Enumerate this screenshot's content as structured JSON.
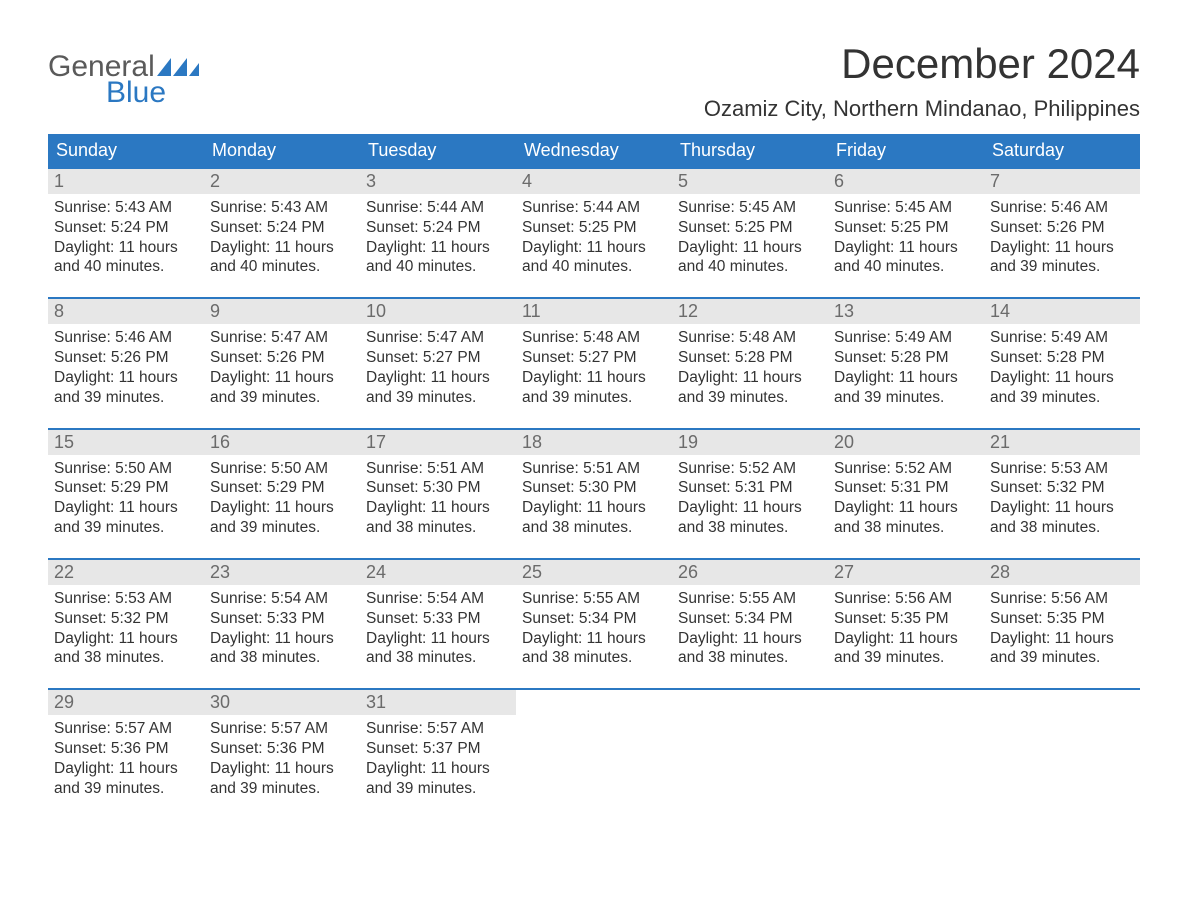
{
  "logo": {
    "text1": "General",
    "text2": "Blue",
    "color1": "#5a5a5a",
    "color2": "#2b78c2"
  },
  "title": "December 2024",
  "location": "Ozamiz City, Northern Mindanao, Philippines",
  "header_bg": "#2b78c2",
  "header_text_color": "#ffffff",
  "daynum_bg": "#e7e7e7",
  "daynum_color": "#6b6b6b",
  "body_color": "#333333",
  "week_border_color": "#2b78c2",
  "background_color": "#ffffff",
  "weekdays": [
    "Sunday",
    "Monday",
    "Tuesday",
    "Wednesday",
    "Thursday",
    "Friday",
    "Saturday"
  ],
  "labels": {
    "sunrise": "Sunrise: ",
    "sunset": "Sunset: ",
    "daylight": "Daylight: "
  },
  "weeks": [
    [
      {
        "n": "1",
        "sunrise": "5:43 AM",
        "sunset": "5:24 PM",
        "daylight": "11 hours and 40 minutes."
      },
      {
        "n": "2",
        "sunrise": "5:43 AM",
        "sunset": "5:24 PM",
        "daylight": "11 hours and 40 minutes."
      },
      {
        "n": "3",
        "sunrise": "5:44 AM",
        "sunset": "5:24 PM",
        "daylight": "11 hours and 40 minutes."
      },
      {
        "n": "4",
        "sunrise": "5:44 AM",
        "sunset": "5:25 PM",
        "daylight": "11 hours and 40 minutes."
      },
      {
        "n": "5",
        "sunrise": "5:45 AM",
        "sunset": "5:25 PM",
        "daylight": "11 hours and 40 minutes."
      },
      {
        "n": "6",
        "sunrise": "5:45 AM",
        "sunset": "5:25 PM",
        "daylight": "11 hours and 40 minutes."
      },
      {
        "n": "7",
        "sunrise": "5:46 AM",
        "sunset": "5:26 PM",
        "daylight": "11 hours and 39 minutes."
      }
    ],
    [
      {
        "n": "8",
        "sunrise": "5:46 AM",
        "sunset": "5:26 PM",
        "daylight": "11 hours and 39 minutes."
      },
      {
        "n": "9",
        "sunrise": "5:47 AM",
        "sunset": "5:26 PM",
        "daylight": "11 hours and 39 minutes."
      },
      {
        "n": "10",
        "sunrise": "5:47 AM",
        "sunset": "5:27 PM",
        "daylight": "11 hours and 39 minutes."
      },
      {
        "n": "11",
        "sunrise": "5:48 AM",
        "sunset": "5:27 PM",
        "daylight": "11 hours and 39 minutes."
      },
      {
        "n": "12",
        "sunrise": "5:48 AM",
        "sunset": "5:28 PM",
        "daylight": "11 hours and 39 minutes."
      },
      {
        "n": "13",
        "sunrise": "5:49 AM",
        "sunset": "5:28 PM",
        "daylight": "11 hours and 39 minutes."
      },
      {
        "n": "14",
        "sunrise": "5:49 AM",
        "sunset": "5:28 PM",
        "daylight": "11 hours and 39 minutes."
      }
    ],
    [
      {
        "n": "15",
        "sunrise": "5:50 AM",
        "sunset": "5:29 PM",
        "daylight": "11 hours and 39 minutes."
      },
      {
        "n": "16",
        "sunrise": "5:50 AM",
        "sunset": "5:29 PM",
        "daylight": "11 hours and 39 minutes."
      },
      {
        "n": "17",
        "sunrise": "5:51 AM",
        "sunset": "5:30 PM",
        "daylight": "11 hours and 38 minutes."
      },
      {
        "n": "18",
        "sunrise": "5:51 AM",
        "sunset": "5:30 PM",
        "daylight": "11 hours and 38 minutes."
      },
      {
        "n": "19",
        "sunrise": "5:52 AM",
        "sunset": "5:31 PM",
        "daylight": "11 hours and 38 minutes."
      },
      {
        "n": "20",
        "sunrise": "5:52 AM",
        "sunset": "5:31 PM",
        "daylight": "11 hours and 38 minutes."
      },
      {
        "n": "21",
        "sunrise": "5:53 AM",
        "sunset": "5:32 PM",
        "daylight": "11 hours and 38 minutes."
      }
    ],
    [
      {
        "n": "22",
        "sunrise": "5:53 AM",
        "sunset": "5:32 PM",
        "daylight": "11 hours and 38 minutes."
      },
      {
        "n": "23",
        "sunrise": "5:54 AM",
        "sunset": "5:33 PM",
        "daylight": "11 hours and 38 minutes."
      },
      {
        "n": "24",
        "sunrise": "5:54 AM",
        "sunset": "5:33 PM",
        "daylight": "11 hours and 38 minutes."
      },
      {
        "n": "25",
        "sunrise": "5:55 AM",
        "sunset": "5:34 PM",
        "daylight": "11 hours and 38 minutes."
      },
      {
        "n": "26",
        "sunrise": "5:55 AM",
        "sunset": "5:34 PM",
        "daylight": "11 hours and 38 minutes."
      },
      {
        "n": "27",
        "sunrise": "5:56 AM",
        "sunset": "5:35 PM",
        "daylight": "11 hours and 39 minutes."
      },
      {
        "n": "28",
        "sunrise": "5:56 AM",
        "sunset": "5:35 PM",
        "daylight": "11 hours and 39 minutes."
      }
    ],
    [
      {
        "n": "29",
        "sunrise": "5:57 AM",
        "sunset": "5:36 PM",
        "daylight": "11 hours and 39 minutes."
      },
      {
        "n": "30",
        "sunrise": "5:57 AM",
        "sunset": "5:36 PM",
        "daylight": "11 hours and 39 minutes."
      },
      {
        "n": "31",
        "sunrise": "5:57 AM",
        "sunset": "5:37 PM",
        "daylight": "11 hours and 39 minutes."
      },
      null,
      null,
      null,
      null
    ]
  ]
}
